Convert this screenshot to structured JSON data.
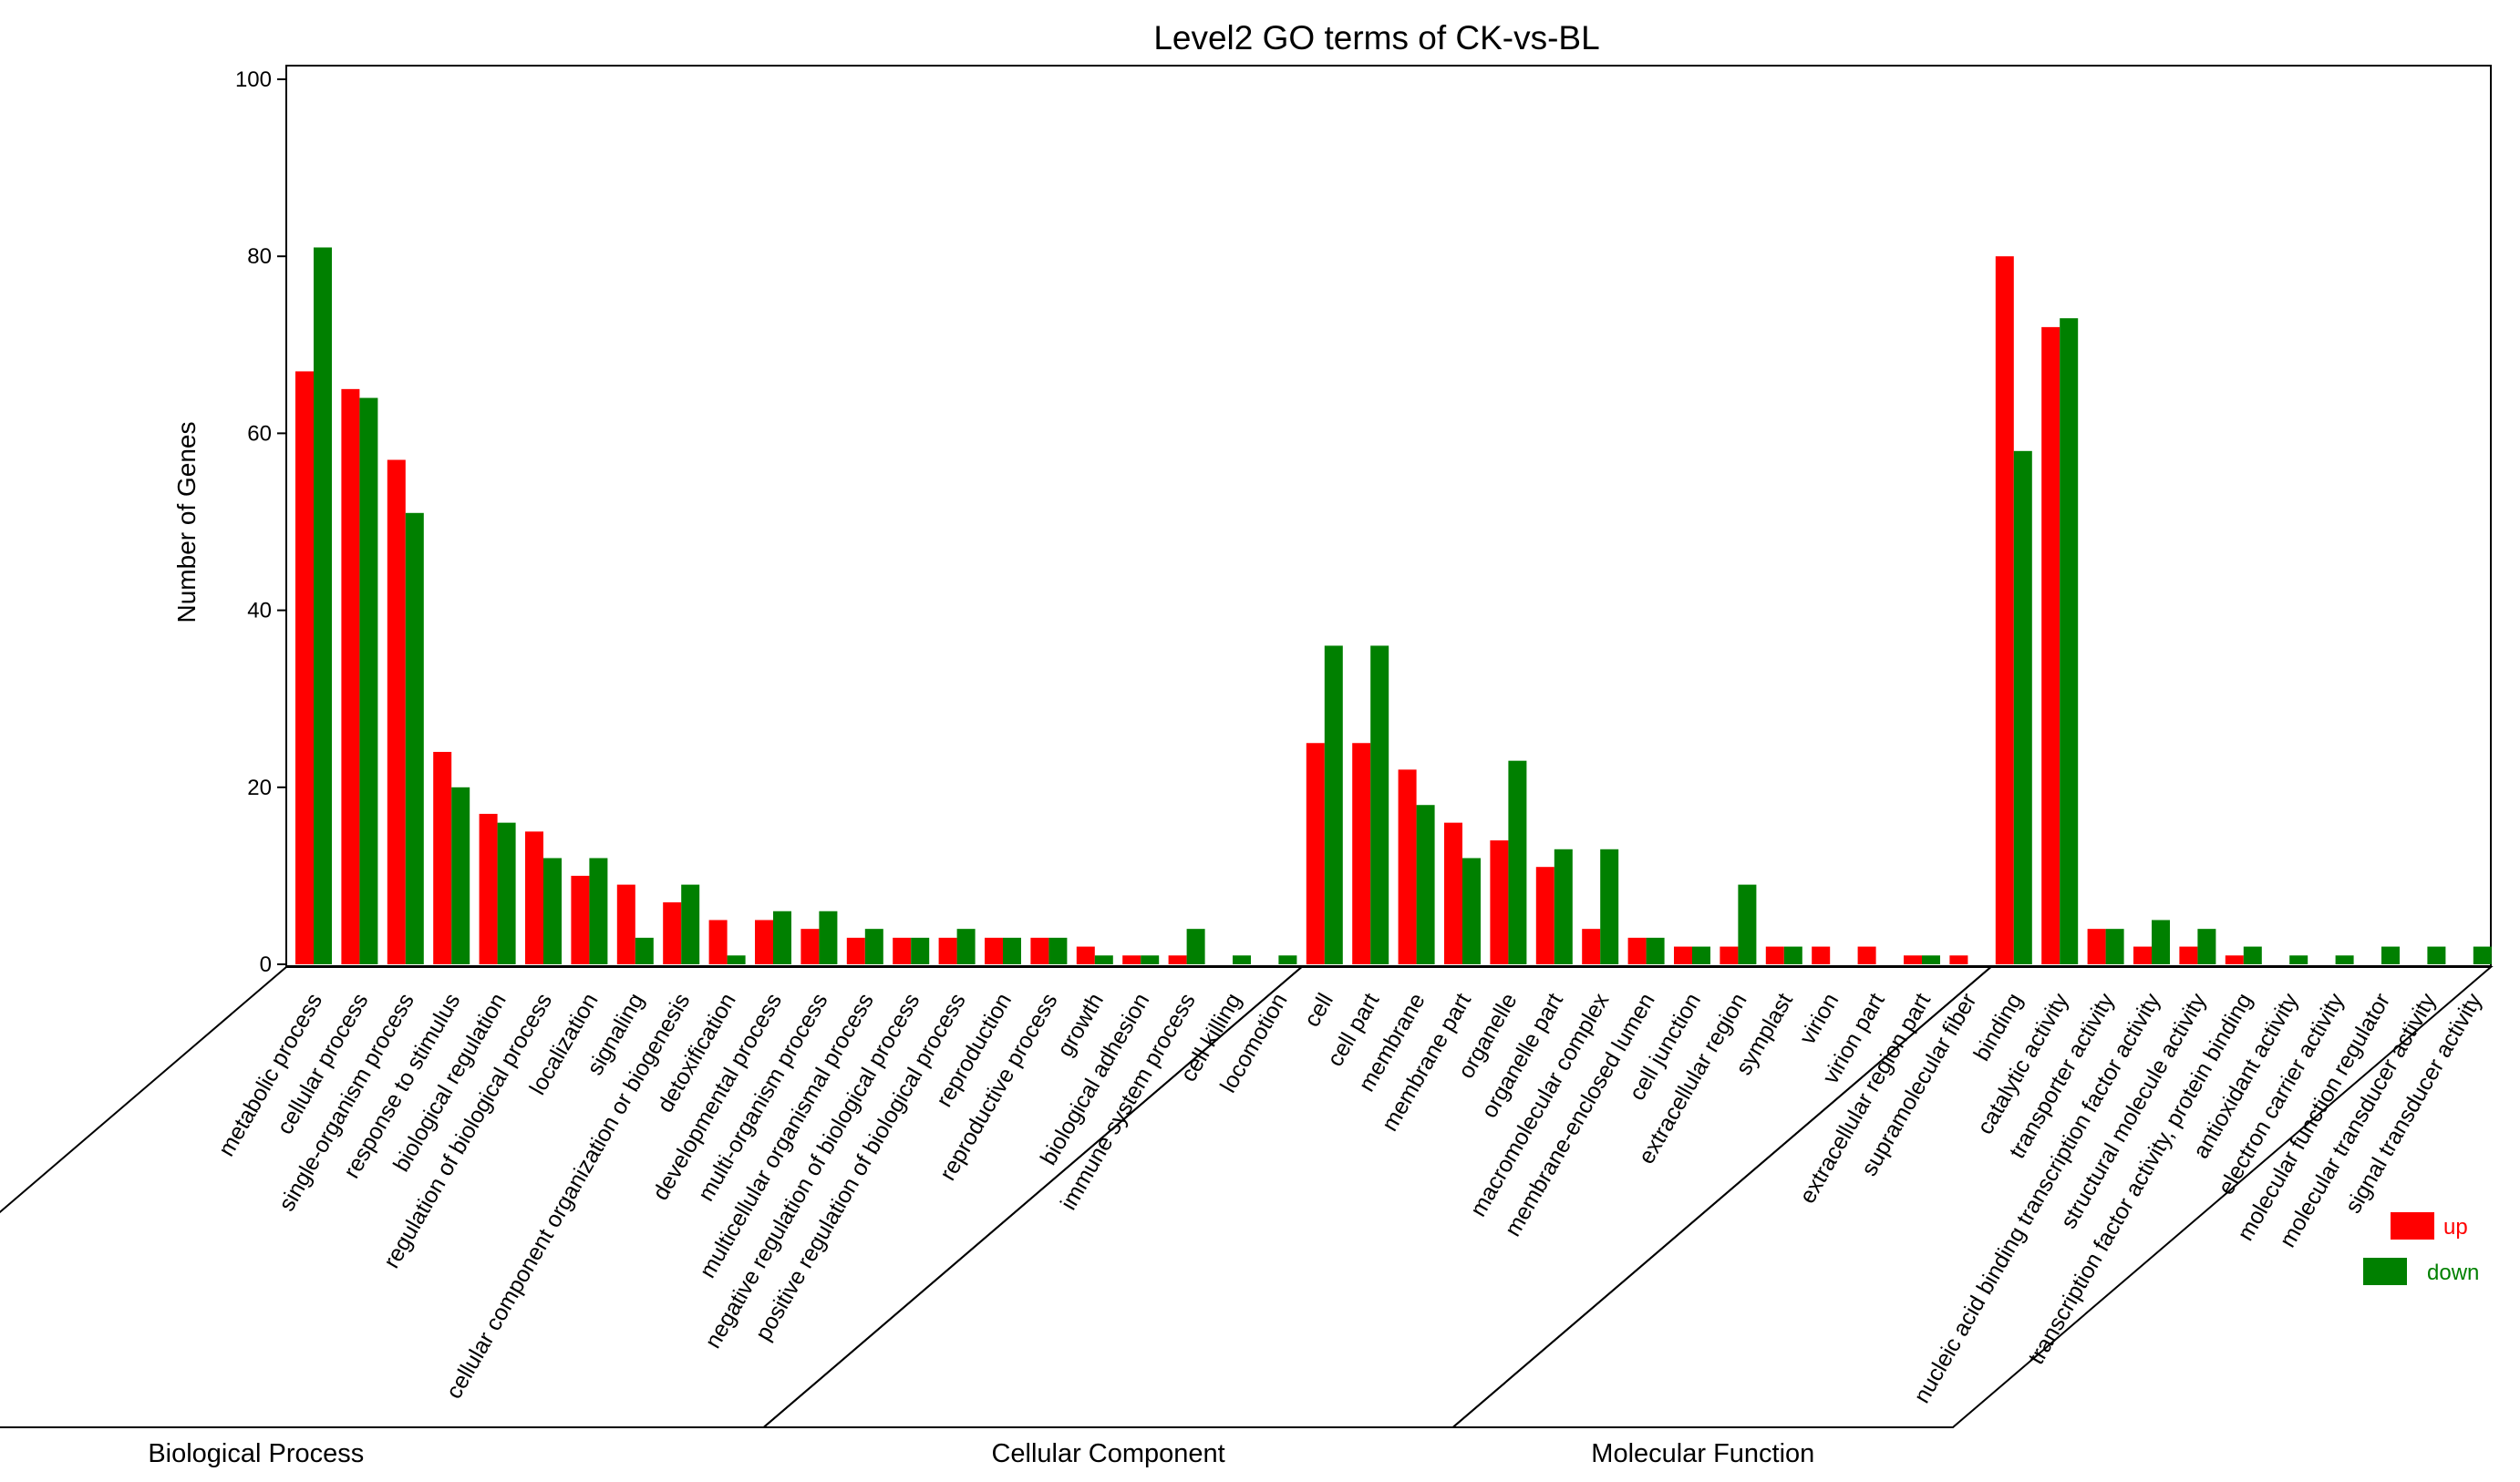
{
  "chart_data": {
    "type": "bar",
    "title": "Level2 GO terms of CK-vs-BL",
    "xlabel": "",
    "ylabel": "Number of Genes",
    "ylim": [
      0,
      100
    ],
    "yticks": [
      0,
      20,
      40,
      60,
      80,
      100
    ],
    "grid": false,
    "legend_position": "bottom-right",
    "colors": {
      "up": "#ff0000",
      "down": "#008000"
    },
    "categories": [
      "metabolic process",
      "cellular process",
      "single-organism process",
      "response to stimulus",
      "biological regulation",
      "regulation of biological process",
      "localization",
      "signaling",
      "cellular component organization or biogenesis",
      "detoxification",
      "developmental process",
      "multi-organism process",
      "multicellular organismal process",
      "negative regulation of biological process",
      "positive regulation of biological process",
      "reproduction",
      "reproductive process",
      "growth",
      "biological adhesion",
      "immune system process",
      "cell killing",
      "locomotion",
      "cell",
      "cell part",
      "membrane",
      "membrane part",
      "organelle",
      "organelle part",
      "macromolecular complex",
      "membrane-enclosed lumen",
      "cell junction",
      "extracellular region",
      "symplast",
      "virion",
      "virion part",
      "extracellular region part",
      "supramolecular fiber",
      "binding",
      "catalytic activity",
      "transporter activity",
      "nucleic acid binding transcription factor activity",
      "structural molecule activity",
      "transcription factor activity, protein binding",
      "antioxidant activity",
      "electron carrier activity",
      "molecular function regulator",
      "molecular transducer activity",
      "signal transducer activity"
    ],
    "series": [
      {
        "name": "up",
        "values": [
          67,
          65,
          57,
          24,
          17,
          15,
          10,
          9,
          7,
          5,
          5,
          4,
          3,
          3,
          3,
          3,
          3,
          2,
          1,
          1,
          0,
          0,
          25,
          25,
          22,
          16,
          14,
          11,
          4,
          3,
          2,
          2,
          2,
          2,
          2,
          1,
          1,
          80,
          72,
          4,
          2,
          2,
          1,
          0,
          0,
          0,
          0,
          0
        ]
      },
      {
        "name": "down",
        "values": [
          81,
          64,
          51,
          20,
          16,
          12,
          12,
          3,
          9,
          1,
          6,
          6,
          4,
          3,
          4,
          3,
          3,
          1,
          1,
          4,
          1,
          1,
          36,
          36,
          18,
          12,
          23,
          13,
          13,
          3,
          2,
          9,
          2,
          0,
          0,
          1,
          0,
          58,
          73,
          4,
          5,
          4,
          2,
          1,
          1,
          2,
          2,
          2
        ]
      }
    ],
    "groups": [
      {
        "label": "Biological Process",
        "count": 22
      },
      {
        "label": "Cellular Component",
        "count": 15
      },
      {
        "label": "Molecular Function",
        "count": 11
      }
    ]
  }
}
